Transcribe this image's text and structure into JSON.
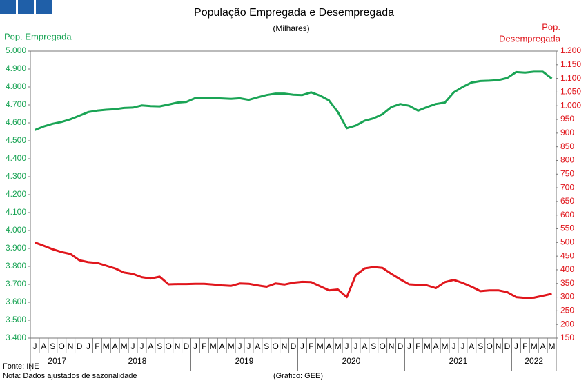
{
  "chart_data": {
    "type": "line",
    "title": "População Empregada e Desempregada",
    "subtitle": "(Milhares)",
    "y_label": "Pop. Empregada",
    "y2_label": [
      "Pop.",
      "Desempregada"
    ],
    "source": "Fonte: INE",
    "note": "Nota: Dados ajustados de sazonalidade",
    "credit": "(Gráfico: GEE)",
    "categories": [
      "J",
      "A",
      "S",
      "O",
      "N",
      "D",
      "J",
      "F",
      "M",
      "A",
      "M",
      "J",
      "J",
      "A",
      "S",
      "O",
      "N",
      "D",
      "J",
      "F",
      "M",
      "A",
      "M",
      "J",
      "J",
      "A",
      "S",
      "O",
      "N",
      "D",
      "J",
      "F",
      "M",
      "A",
      "M",
      "J",
      "J",
      "A",
      "S",
      "O",
      "N",
      "D",
      "J",
      "F",
      "M",
      "A",
      "M",
      "J",
      "J",
      "A",
      "S",
      "O",
      "N",
      "D",
      "J",
      "F",
      "M",
      "A",
      "M"
    ],
    "year_labels": [
      "2017",
      "2018",
      "2019",
      "2020",
      "2021",
      "2022"
    ],
    "series": [
      {
        "name": "Pop. Empregada",
        "color": "#1aa455",
        "axis": "y",
        "values": [
          4560,
          4580,
          4595,
          4605,
          4620,
          4640,
          4660,
          4668,
          4673,
          4676,
          4683,
          4685,
          4697,
          4693,
          4692,
          4702,
          4713,
          4717,
          4738,
          4740,
          4738,
          4736,
          4734,
          4737,
          4728,
          4742,
          4755,
          4763,
          4763,
          4757,
          4755,
          4770,
          4752,
          4725,
          4660,
          4570,
          4585,
          4612,
          4625,
          4648,
          4688,
          4705,
          4695,
          4668,
          4688,
          4705,
          4713,
          4770,
          4800,
          4825,
          4833,
          4835,
          4838,
          4850,
          4883,
          4880,
          4885,
          4885,
          4847
        ]
      },
      {
        "name": "Pop. Desempregada",
        "color": "#e0161c",
        "axis": "y2",
        "values": [
          500,
          488,
          475,
          465,
          458,
          435,
          428,
          425,
          415,
          405,
          390,
          385,
          373,
          368,
          375,
          347,
          348,
          348,
          349,
          349,
          346,
          343,
          341,
          350,
          349,
          343,
          338,
          350,
          346,
          353,
          356,
          355,
          340,
          325,
          328,
          300,
          380,
          405,
          410,
          407,
          385,
          365,
          347,
          345,
          343,
          333,
          355,
          363,
          352,
          338,
          322,
          325,
          325,
          318,
          300,
          297,
          298,
          305,
          312
        ]
      }
    ],
    "ylim": [
      3400,
      5000
    ],
    "yticks": [
      {
        "value": 3400,
        "label": "3.400"
      },
      {
        "value": 3500,
        "label": "3.500"
      },
      {
        "value": 3600,
        "label": "3.600"
      },
      {
        "value": 3700,
        "label": "3.700"
      },
      {
        "value": 3800,
        "label": "3.800"
      },
      {
        "value": 3900,
        "label": "3.900"
      },
      {
        "value": 4000,
        "label": "4.000"
      },
      {
        "value": 4100,
        "label": "4.100"
      },
      {
        "value": 4200,
        "label": "4.200"
      },
      {
        "value": 4300,
        "label": "4.300"
      },
      {
        "value": 4400,
        "label": "4.400"
      },
      {
        "value": 4500,
        "label": "4.500"
      },
      {
        "value": 4600,
        "label": "4.600"
      },
      {
        "value": 4700,
        "label": "4.700"
      },
      {
        "value": 4800,
        "label": "4.800"
      },
      {
        "value": 4900,
        "label": "4.900"
      },
      {
        "value": 5000,
        "label": "5.000"
      }
    ],
    "y2lim": [
      150,
      1200
    ],
    "y2ticks": [
      150,
      200,
      250,
      300,
      350,
      400,
      450,
      500,
      550,
      600,
      650,
      700,
      750,
      800,
      850,
      900,
      950,
      {
        "value": 1000,
        "label": "1.000"
      },
      {
        "value": 1050,
        "label": "1.050"
      },
      {
        "value": 1100,
        "label": "1.100"
      },
      {
        "value": 1150,
        "label": "1.150"
      },
      {
        "value": 1200,
        "label": "1.200"
      }
    ],
    "grid": false
  }
}
